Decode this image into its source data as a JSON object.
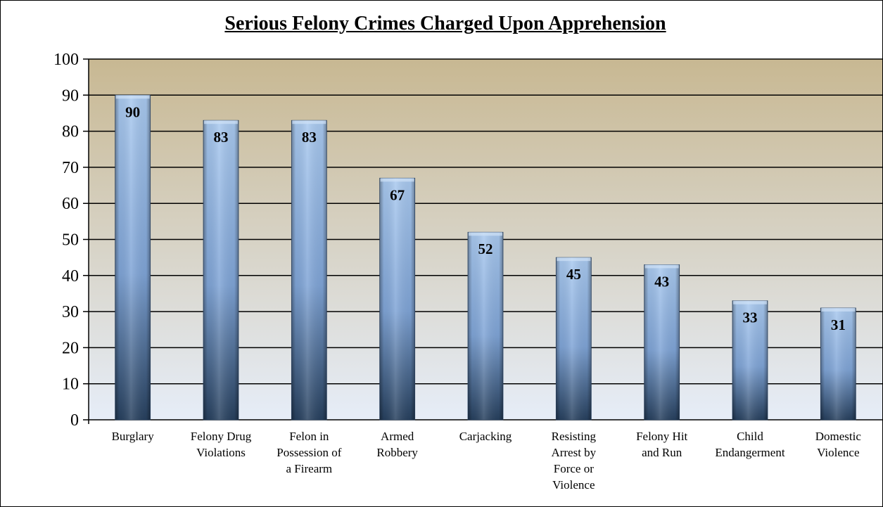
{
  "chart_data": {
    "type": "bar",
    "title": "Serious Felony Crimes Charged Upon Apprehension",
    "xlabel": "",
    "ylabel": "",
    "categories": [
      "Burglary",
      "Felony Drug Violations",
      "Felon in Possession of a Firearm",
      "Armed Robbery",
      "Carjacking",
      "Resisting Arrest by Force or Violence",
      "Felony Hit and Run",
      "Child Endangerment",
      "Domestic Violence"
    ],
    "category_label_lines": [
      [
        "Burglary"
      ],
      [
        "Felony Drug",
        "Violations"
      ],
      [
        "Felon in",
        "Possession of",
        "a Firearm"
      ],
      [
        "Armed",
        "Robbery"
      ],
      [
        "Carjacking"
      ],
      [
        "Resisting",
        "Arrest by",
        "Force or",
        "Violence"
      ],
      [
        "Felony Hit",
        "and Run"
      ],
      [
        "Child",
        "Endangerment"
      ],
      [
        "Domestic",
        "Violence"
      ]
    ],
    "values": [
      90,
      83,
      83,
      67,
      52,
      45,
      43,
      33,
      31
    ],
    "ylim": [
      0,
      100
    ],
    "yticks": [
      0,
      10,
      20,
      30,
      40,
      50,
      60,
      70,
      80,
      90,
      100
    ],
    "grid": true,
    "legend": "none",
    "colors": {
      "bar_light": "#a9c9ef",
      "bar_mid": "#7fa4d6",
      "bar_dark": "#27405e",
      "bg_top": "#c8b892",
      "bg_bottom": "#e6edf8",
      "gridline": "#000000"
    }
  }
}
